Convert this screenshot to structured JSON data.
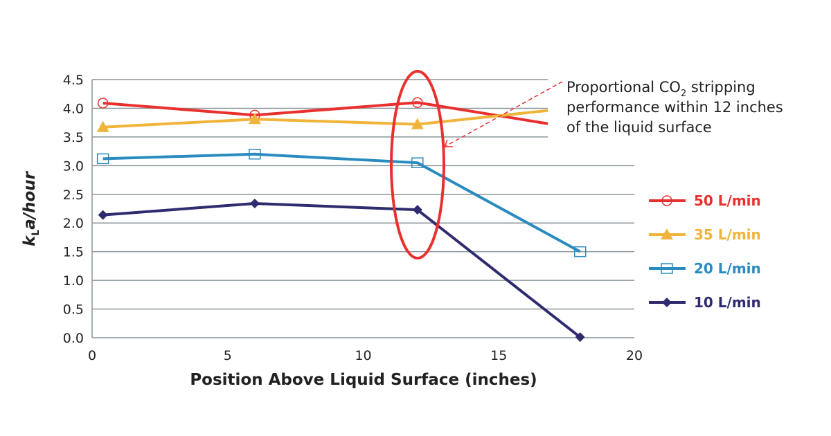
{
  "chart_data": {
    "type": "line",
    "xlabel": "Position Above Liquid Surface (inches)",
    "ylabel": {
      "k": "k",
      "sub": "L",
      "rest": "a/hour"
    },
    "xlim": [
      0,
      20
    ],
    "ylim": [
      0,
      4.5
    ],
    "xticks": [
      "0",
      "5",
      "10",
      "15",
      "20"
    ],
    "yticks": [
      "0.0",
      "0.5",
      "1.0",
      "1.5",
      "2.0",
      "2.5",
      "3.0",
      "3.5",
      "4.0",
      "4.5"
    ],
    "grid": "horizontal",
    "legend_position": "right",
    "series": [
      {
        "name": "50 L/min",
        "color": "#e8312f",
        "marker": "open-circle",
        "x": [
          0.4,
          6,
          12,
          18
        ],
        "y": [
          4.09,
          3.88,
          4.1,
          3.64
        ]
      },
      {
        "name": "35 L/min",
        "color": "#f0b43a",
        "marker": "filled-triangle",
        "x": [
          0.4,
          6,
          12,
          18
        ],
        "y": [
          3.67,
          3.81,
          3.72,
          4.02
        ]
      },
      {
        "name": "20 L/min",
        "color": "#2a8bbf",
        "marker": "open-square",
        "x": [
          0.4,
          6,
          12,
          18
        ],
        "y": [
          3.12,
          3.2,
          3.05,
          1.5
        ]
      },
      {
        "name": "10 L/min",
        "color": "#2e2b6e",
        "marker": "filled-diamond",
        "x": [
          0.4,
          6,
          12,
          18
        ],
        "y": [
          2.14,
          2.34,
          2.23,
          0.01
        ]
      }
    ],
    "annotation": {
      "lines": [
        "Proportional CO|2| stripping",
        "performance within 12 inches",
        "of the liquid surface"
      ],
      "line1_pre": "Proportional CO",
      "line1_sub": "2",
      "line1_post": " stripping",
      "line2": "performance within 12 inches",
      "line3": "of the liquid surface",
      "highlight_x": 12,
      "color": "#e8312f"
    }
  }
}
